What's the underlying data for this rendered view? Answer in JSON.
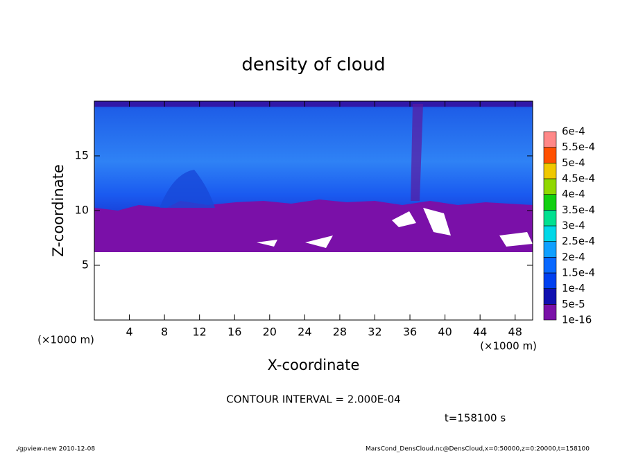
{
  "chart_data": {
    "type": "contour",
    "title": "density of cloud",
    "xlabel": "X-coordinate",
    "ylabel": "Z-coordinate",
    "xunit": "(×1000 m)",
    "yunit": "(×1000 m)",
    "xlim": [
      0,
      50
    ],
    "ylim": [
      0,
      20
    ],
    "xticks": [
      4,
      8,
      12,
      16,
      20,
      24,
      28,
      32,
      36,
      40,
      44,
      48
    ],
    "yticks": [
      5,
      10,
      15
    ],
    "levels": [
      {
        "value": 1e-16,
        "label": "1e-16"
      },
      {
        "value": 5e-05,
        "label": "5e-5"
      },
      {
        "value": 0.0001,
        "label": "1e-4"
      },
      {
        "value": 0.00015,
        "label": "1.5e-4"
      },
      {
        "value": 0.0002,
        "label": "2e-4"
      },
      {
        "value": 0.00025,
        "label": "2.5e-4"
      },
      {
        "value": 0.0003,
        "label": "3e-4"
      },
      {
        "value": 0.00035,
        "label": "3.5e-4"
      },
      {
        "value": 0.0004,
        "label": "4e-4"
      },
      {
        "value": 0.00045,
        "label": "4.5e-4"
      },
      {
        "value": 0.0005,
        "label": "5e-4"
      },
      {
        "value": 0.00055,
        "label": "5.5e-4"
      },
      {
        "value": 0.0006,
        "label": "6e-4"
      }
    ],
    "level_colors": [
      "#7a10a8",
      "#1010b0",
      "#0040f0",
      "#0868ff",
      "#10a0ff",
      "#00d8e8",
      "#00e090",
      "#10d010",
      "#90d800",
      "#f0c800",
      "#ff5000",
      "#ff8888"
    ],
    "contour_interval": "CONTOUR INTERVAL = 2.000E-04",
    "time": "t=158100 s",
    "footer_left": "./gpview-new  2010-12-08",
    "footer_right": "MarsCond_DensCloud.nc@DensCloud,x=0:50000,z=0:20000,t=158100"
  }
}
